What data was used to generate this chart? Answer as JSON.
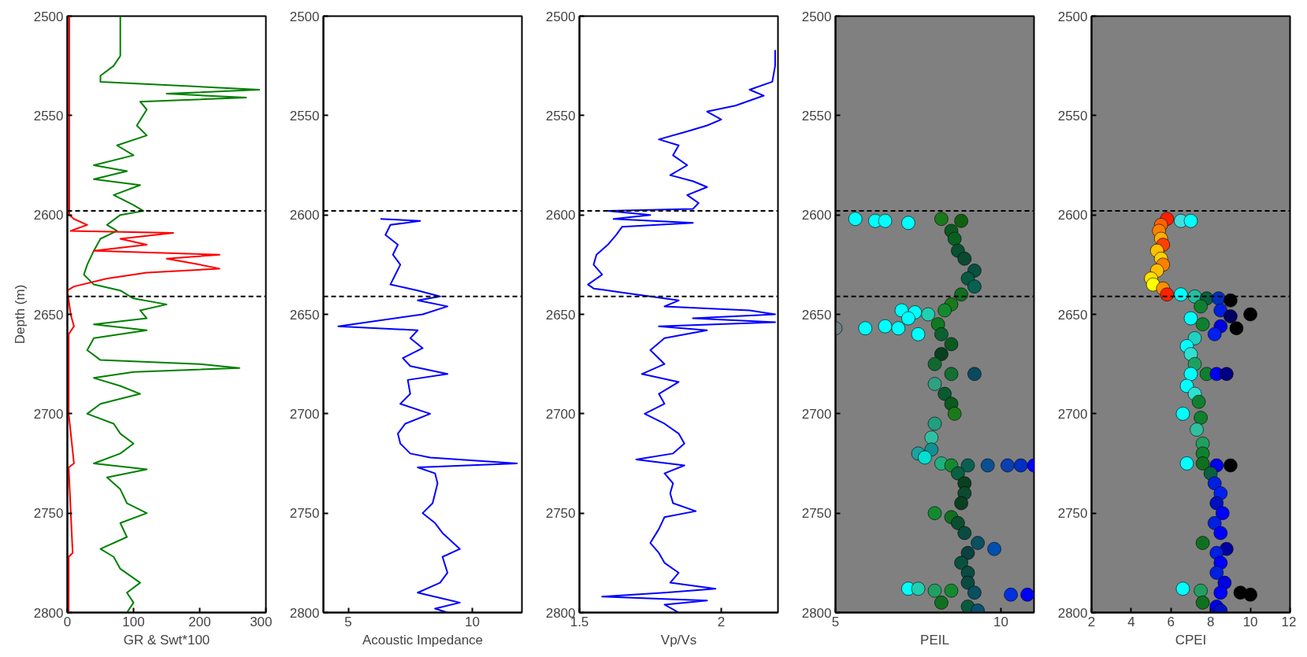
{
  "chart_data": [
    {
      "type": "line",
      "xlabel": "GR & Swt*100",
      "ylabel": "Depth (m)",
      "xlim": [
        0,
        300
      ],
      "xticks": [
        0,
        100,
        200,
        300
      ],
      "ylim": [
        2800,
        2500
      ],
      "yticks": [
        2500,
        2550,
        2600,
        2650,
        2700,
        2750,
        2800
      ],
      "grid": false,
      "ref_lines": [
        {
          "axis": "y",
          "value": 2598,
          "label": null,
          "color": "#000000",
          "line_style": "dashed"
        },
        {
          "axis": "y",
          "value": 2641,
          "label": null,
          "color": "#000000",
          "line_style": "dashed"
        }
      ],
      "series": [
        {
          "color": "#008000",
          "x": [
            80,
            80,
            80,
            70,
            50,
            50,
            290,
            150,
            270,
            110,
            120,
            105,
            120,
            75,
            100,
            40,
            90,
            40,
            110,
            70,
            100,
            115,
            80,
            60,
            75,
            50,
            40,
            30,
            25,
            40,
            80,
            100,
            150,
            110,
            120,
            40,
            120,
            40,
            30,
            50,
            200,
            260,
            100,
            40,
            80,
            110,
            50,
            30,
            70,
            80,
            100,
            80,
            40,
            120,
            60,
            80,
            90,
            120,
            80,
            90,
            50,
            70,
            80,
            110,
            90,
            100,
            90
          ],
          "values": [
            2500,
            2510,
            2520,
            2525,
            2530,
            2533,
            2537,
            2539,
            2541,
            2543,
            2547,
            2555,
            2560,
            2565,
            2570,
            2575,
            2578,
            2582,
            2585,
            2590,
            2595,
            2598,
            2600,
            2605,
            2608,
            2612,
            2618,
            2625,
            2630,
            2635,
            2638,
            2642,
            2645,
            2648,
            2652,
            2655,
            2658,
            2662,
            2668,
            2673,
            2675,
            2677,
            2679,
            2682,
            2686,
            2690,
            2695,
            2700,
            2705,
            2710,
            2715,
            2720,
            2725,
            2728,
            2732,
            2738,
            2745,
            2750,
            2755,
            2762,
            2768,
            2772,
            2778,
            2785,
            2790,
            2795,
            2800
          ]
        },
        {
          "color": "#ff0000",
          "x": [
            3,
            3,
            3,
            10,
            30,
            5,
            160,
            80,
            120,
            40,
            230,
            150,
            200,
            230,
            120,
            60,
            10,
            0,
            5,
            10,
            2,
            2,
            10,
            2,
            8,
            2,
            2
          ],
          "values": [
            2500,
            2550,
            2600,
            2602,
            2605,
            2608,
            2609,
            2612,
            2615,
            2618,
            2620,
            2622,
            2625,
            2627,
            2629,
            2632,
            2636,
            2638,
            2650,
            2656,
            2660,
            2700,
            2725,
            2727,
            2770,
            2772,
            2800
          ]
        }
      ]
    },
    {
      "type": "line",
      "xlabel": "Acoustic Impedance",
      "xlim": [
        4,
        12
      ],
      "xticks": [
        5,
        10
      ],
      "ylim": [
        2800,
        2500
      ],
      "yticks": [
        2500,
        2550,
        2600,
        2650,
        2700,
        2750,
        2800
      ],
      "grid": false,
      "ref_lines": [
        {
          "axis": "y",
          "value": 2598,
          "label": null,
          "color": "#000000",
          "line_style": "dashed"
        },
        {
          "axis": "y",
          "value": 2641,
          "label": null,
          "color": "#000000",
          "line_style": "dashed"
        }
      ],
      "series": [
        {
          "color": "#0000ff",
          "x": [
            6.3,
            7.9,
            6.7,
            6.5,
            7.0,
            6.8,
            7.1,
            6.9,
            6.7,
            7.8,
            8.7,
            7.8,
            9.0,
            8.0,
            4.6,
            7.8,
            7.5,
            8.0,
            7.2,
            7.5,
            9.0,
            7.4,
            7.5,
            7.1,
            8.3,
            7.3,
            7.0,
            7.1,
            7.5,
            8.3,
            11.8,
            7.8,
            8.5,
            8.6,
            8.5,
            8.4,
            8.0,
            8.5,
            8.8,
            9.5,
            8.8,
            9.0,
            8.7,
            7.8,
            9.5,
            8.5,
            9.0
          ],
          "values": [
            2602,
            2603,
            2605,
            2610,
            2615,
            2620,
            2625,
            2630,
            2635,
            2638,
            2641,
            2643,
            2646,
            2650,
            2656,
            2658,
            2662,
            2667,
            2672,
            2676,
            2680,
            2683,
            2690,
            2695,
            2700,
            2705,
            2710,
            2715,
            2720,
            2722,
            2725,
            2727,
            2730,
            2735,
            2740,
            2745,
            2750,
            2755,
            2760,
            2768,
            2772,
            2780,
            2785,
            2790,
            2795,
            2798,
            2800
          ]
        }
      ]
    },
    {
      "type": "line",
      "xlabel": "Vp/Vs",
      "xlim": [
        1.5,
        2.2
      ],
      "xticks": [
        1.5,
        2
      ],
      "ylim": [
        2800,
        2500
      ],
      "yticks": [
        2500,
        2550,
        2600,
        2650,
        2700,
        2750,
        2800
      ],
      "grid": false,
      "ref_lines": [
        {
          "axis": "y",
          "value": 2598,
          "label": null,
          "color": "#000000",
          "line_style": "dashed"
        },
        {
          "axis": "y",
          "value": 2641,
          "label": null,
          "color": "#000000",
          "line_style": "dashed"
        }
      ],
      "series": [
        {
          "color": "#0000ff",
          "x": [
            2.19,
            2.19,
            2.18,
            2.1,
            2.15,
            2.05,
            1.95,
            2.0,
            1.95,
            1.88,
            1.78,
            1.85,
            1.83,
            1.88,
            1.82,
            1.9,
            1.95,
            1.88,
            1.92,
            1.9,
            1.6,
            1.75,
            1.62,
            1.9,
            1.65,
            1.63,
            1.6,
            1.56,
            1.55,
            1.58,
            1.53,
            1.55,
            1.65,
            1.75,
            1.85,
            1.8,
            2.1,
            2.19,
            1.9,
            2.19,
            1.78,
            1.95,
            1.8,
            1.75,
            1.8,
            1.72,
            1.85,
            1.78,
            1.8,
            1.73,
            1.8,
            1.85,
            1.87,
            1.83,
            1.7,
            1.87,
            1.8,
            1.83,
            1.82,
            1.83,
            1.91,
            1.8,
            1.78,
            1.75,
            1.78,
            1.8,
            1.85,
            1.82,
            1.98,
            1.8,
            1.58,
            1.95,
            1.8,
            1.85
          ],
          "values": [
            2517,
            2525,
            2533,
            2537,
            2540,
            2545,
            2548,
            2552,
            2555,
            2558,
            2562,
            2565,
            2570,
            2575,
            2580,
            2583,
            2586,
            2590,
            2594,
            2597,
            2598,
            2600,
            2602,
            2604,
            2606,
            2610,
            2615,
            2620,
            2625,
            2630,
            2635,
            2637,
            2639,
            2641,
            2643,
            2646,
            2648,
            2650,
            2652,
            2654,
            2656,
            2658,
            2662,
            2668,
            2675,
            2680,
            2684,
            2690,
            2695,
            2700,
            2705,
            2710,
            2715,
            2720,
            2723,
            2726,
            2730,
            2735,
            2740,
            2745,
            2749,
            2752,
            2758,
            2765,
            2770,
            2775,
            2780,
            2785,
            2788,
            2790,
            2792,
            2794,
            2796,
            2800
          ]
        }
      ]
    },
    {
      "type": "scatter",
      "xlabel": "PEIL",
      "xlim": [
        5,
        11
      ],
      "xticks": [
        5,
        10
      ],
      "ylim": [
        2800,
        2500
      ],
      "yticks": [
        2500,
        2550,
        2600,
        2650,
        2700,
        2750,
        2800
      ],
      "grid": false,
      "marker": "circle",
      "ref_lines": [
        {
          "axis": "y",
          "value": 2598,
          "label": null,
          "color": "#000000",
          "line_style": "dashed"
        },
        {
          "axis": "y",
          "value": 2641,
          "label": null,
          "color": "#000000",
          "line_style": "dashed"
        }
      ],
      "series": [
        {
          "x": [
            5.6,
            6.2,
            6.5,
            7.2,
            8.2,
            8.8,
            8.5,
            8.6,
            8.7,
            8.9,
            9.2,
            9.0,
            9.2,
            8.8,
            8.5,
            8.3,
            7.0,
            7.4,
            7.8,
            7.2,
            6.5,
            5.9,
            5.0,
            6.9,
            7.5,
            8.1,
            8.2,
            8.5,
            8.2,
            8.0,
            8.5,
            9.2,
            8.0,
            8.3,
            8.5,
            8.6,
            8.0,
            7.9,
            7.9,
            7.5,
            7.7,
            8.2,
            8.5,
            9.0,
            9.6,
            10.2,
            10.6,
            11.0,
            8.7,
            8.9,
            8.9,
            8.8,
            8.0,
            8.5,
            8.7,
            8.9,
            9.3,
            9.8,
            9.0,
            8.8,
            9.0,
            9.0,
            7.2,
            7.5,
            8.0,
            8.5,
            9.2,
            10.3,
            10.8,
            8.2,
            9.0,
            9.3
          ],
          "values": [
            2602,
            2603,
            2603,
            2604,
            2602,
            2603,
            2608,
            2612,
            2618,
            2622,
            2628,
            2632,
            2636,
            2640,
            2645,
            2648,
            2648,
            2649,
            2650,
            2652,
            2656,
            2657,
            2657,
            2657,
            2660,
            2655,
            2660,
            2665,
            2670,
            2675,
            2680,
            2680,
            2685,
            2690,
            2695,
            2700,
            2705,
            2712,
            2718,
            2720,
            2722,
            2725,
            2726,
            2726,
            2726,
            2726,
            2726,
            2726,
            2730,
            2735,
            2740,
            2745,
            2750,
            2752,
            2755,
            2760,
            2765,
            2768,
            2770,
            2775,
            2780,
            2785,
            2788,
            2788,
            2789,
            2789,
            2790,
            2791,
            2791,
            2795,
            2797,
            2799
          ],
          "colors": [
            "#00ffff",
            "#00ffff",
            "#00ffff",
            "#00ffff",
            "#1a7a1a",
            "#106010",
            "#0a5a20",
            "#0a6020",
            "#085030",
            "#0a4a30",
            "#0a5040",
            "#085a40",
            "#086050",
            "#107020",
            "#1a7a1a",
            "#138a30",
            "#00ffff",
            "#00ffff",
            "#20d0b0",
            "#00ffff",
            "#00ffff",
            "#00ffff",
            "#708080",
            "#00ffff",
            "#00ffff",
            "#107a20",
            "#0a6030",
            "#0a5a20",
            "#0a4020",
            "#106a30",
            "#137030",
            "#0a4a60",
            "#30a080",
            "#0a5a30",
            "#0a5a20",
            "#1a7a1a",
            "#20a080",
            "#30c0a0",
            "#109090",
            "#20a0a0",
            "#00e0d0",
            "#20b080",
            "#138a30",
            "#0a6050",
            "#0a5090",
            "#0a40b0",
            "#0030c0",
            "#0000ff",
            "#0a6040",
            "#0a4020",
            "#0a4a30",
            "#0a4020",
            "#138a30",
            "#107020",
            "#0a5030",
            "#0a4a40",
            "#0a5060",
            "#0050b0",
            "#0a4040",
            "#0a5040",
            "#0a4a40",
            "#0a4a40",
            "#00ffff",
            "#20d0b0",
            "#20a060",
            "#138a30",
            "#0a5060",
            "#0030e0",
            "#0000ff",
            "#107020",
            "#0a5a40",
            "#0a5070"
          ]
        }
      ]
    },
    {
      "type": "scatter",
      "xlabel": "CPEI",
      "xlim": [
        2,
        12
      ],
      "xticks": [
        2,
        4,
        6,
        8,
        10,
        12
      ],
      "ylim": [
        2800,
        2500
      ],
      "yticks": [
        2500,
        2550,
        2600,
        2650,
        2700,
        2750,
        2800
      ],
      "grid": false,
      "marker": "circle",
      "ref_lines": [
        {
          "axis": "y",
          "value": 2598,
          "label": null,
          "color": "#000000",
          "line_style": "dashed"
        },
        {
          "axis": "y",
          "value": 2641,
          "label": null,
          "color": "#000000",
          "line_style": "dashed"
        }
      ],
      "series": [
        {
          "x": [
            5.8,
            6.5,
            7.0,
            5.5,
            5.4,
            5.5,
            5.6,
            5.3,
            5.5,
            5.6,
            5.3,
            5.0,
            5.1,
            5.6,
            5.8,
            6.5,
            7.2,
            7.8,
            8.4,
            9.0,
            7.5,
            8.5,
            10.0,
            9.0,
            7.0,
            7.6,
            8.5,
            9.3,
            8.2,
            7.2,
            6.8,
            7.0,
            7.2,
            7.0,
            7.8,
            8.3,
            8.8,
            6.8,
            7.2,
            7.4,
            6.6,
            7.5,
            7.3,
            7.6,
            7.6,
            6.8,
            7.6,
            8.3,
            9.0,
            8.0,
            8.2,
            8.5,
            8.3,
            8.6,
            8.2,
            8.5,
            7.6,
            8.8,
            8.3,
            8.5,
            8.3,
            8.7,
            6.6,
            7.5,
            8.5,
            9.5,
            10.0,
            7.6,
            8.3,
            8.5
          ],
          "values": [
            2602,
            2603,
            2603,
            2605,
            2608,
            2612,
            2615,
            2618,
            2622,
            2625,
            2628,
            2632,
            2635,
            2637,
            2640,
            2640,
            2641,
            2642,
            2642,
            2643,
            2646,
            2648,
            2650,
            2651,
            2652,
            2655,
            2656,
            2657,
            2660,
            2662,
            2666,
            2670,
            2675,
            2680,
            2680,
            2680,
            2680,
            2686,
            2690,
            2694,
            2700,
            2702,
            2708,
            2715,
            2720,
            2725,
            2725,
            2726,
            2726,
            2730,
            2735,
            2740,
            2745,
            2750,
            2755,
            2760,
            2765,
            2768,
            2770,
            2775,
            2780,
            2785,
            2788,
            2789,
            2790,
            2790,
            2791,
            2795,
            2797,
            2799
          ],
          "colors": [
            "#ff2000",
            "#40e0e0",
            "#00ffff",
            "#ff6000",
            "#ff8000",
            "#ffb000",
            "#ff4000",
            "#ffc000",
            "#ffd000",
            "#ff8000",
            "#ffc000",
            "#ffe000",
            "#ffff00",
            "#ff9000",
            "#ff2000",
            "#00ffff",
            "#20c0a0",
            "#0a6040",
            "#0030c0",
            "#000000",
            "#108030",
            "#0020e0",
            "#000000",
            "#000060",
            "#00ffff",
            "#108030",
            "#0000e0",
            "#000000",
            "#0020f0",
            "#20d0c0",
            "#00ffff",
            "#30e0d0",
            "#20a060",
            "#00ffff",
            "#108030",
            "#0000f0",
            "#000080",
            "#00ffff",
            "#30e0d0",
            "#108030",
            "#00ffff",
            "#108030",
            "#30c0a0",
            "#20a060",
            "#108030",
            "#00ffff",
            "#107020",
            "#0000f0",
            "#000000",
            "#0a6040",
            "#0020e0",
            "#0020f0",
            "#0010c0",
            "#0000ff",
            "#0020e0",
            "#0000ff",
            "#107020",
            "#0000a0",
            "#0020e0",
            "#0000ff",
            "#0020e0",
            "#0000e0",
            "#00ffff",
            "#20a060",
            "#0000ff",
            "#000000",
            "#000000",
            "#107020",
            "#0000f0",
            "#0010c0"
          ]
        }
      ]
    }
  ]
}
